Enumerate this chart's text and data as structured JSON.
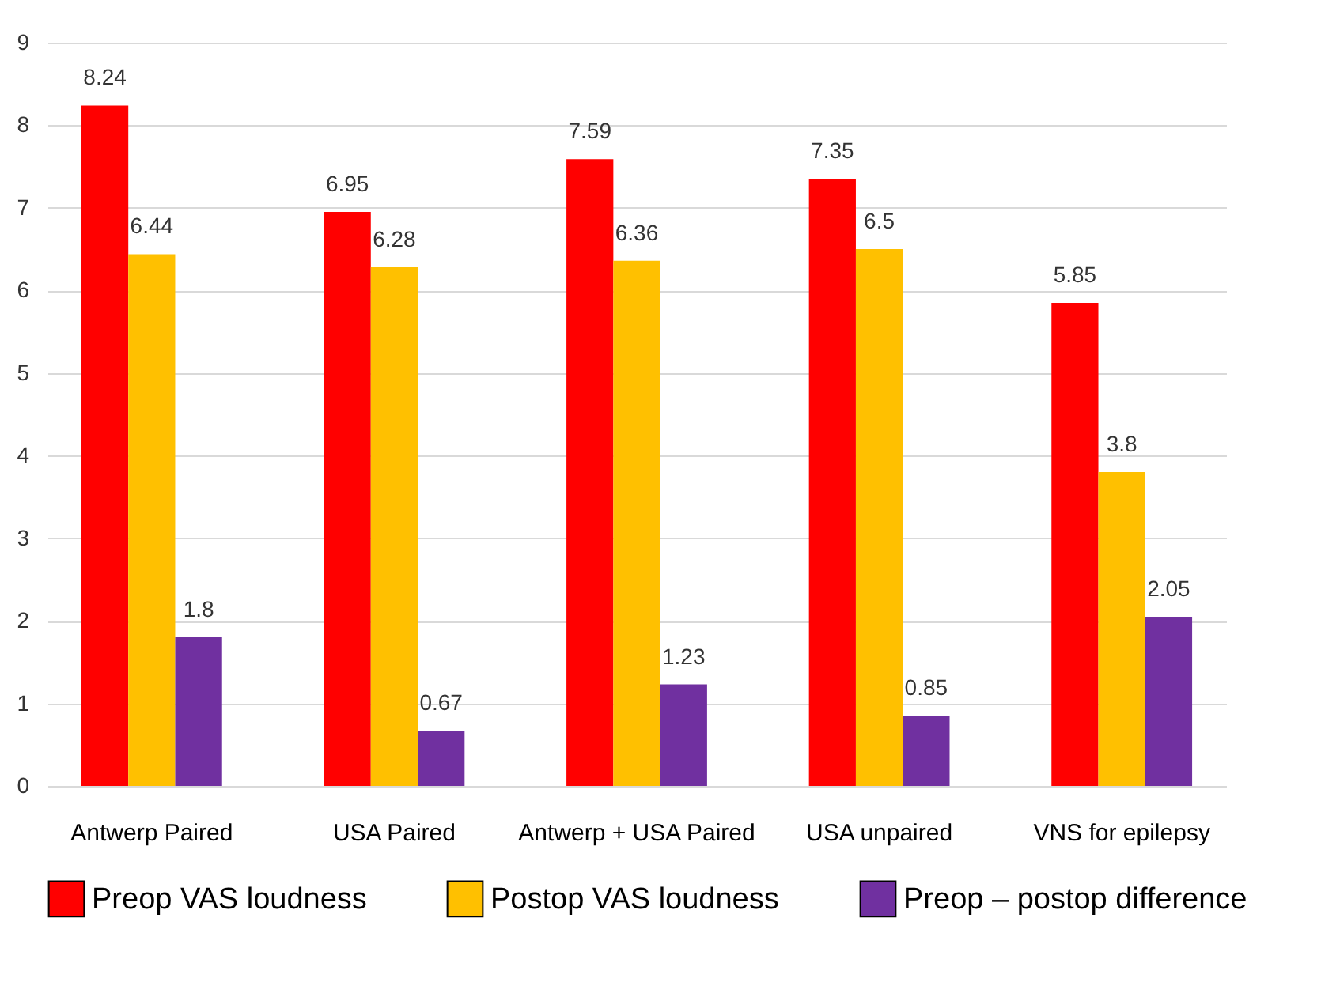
{
  "chart_data": {
    "type": "bar",
    "categories": [
      "Antwerp Paired",
      "USA Paired",
      "Antwerp + USA Paired",
      "USA unpaired",
      "VNS for epilepsy"
    ],
    "series": [
      {
        "name": "Preop VAS loudness",
        "color": "#ff0000",
        "values": [
          8.24,
          6.95,
          7.59,
          7.35,
          5.85
        ]
      },
      {
        "name": "Postop VAS loudness",
        "color": "#ffc000",
        "values": [
          6.44,
          6.28,
          6.36,
          6.5,
          3.8
        ]
      },
      {
        "name": "Preop – postop difference",
        "color": "#7030a0",
        "values": [
          1.8,
          0.67,
          1.23,
          0.85,
          2.05
        ]
      }
    ],
    "ylim": [
      0,
      9
    ],
    "yticks": [
      0,
      1,
      2,
      3,
      4,
      5,
      6,
      7,
      8,
      9
    ],
    "grid": "y",
    "legend": "bottom",
    "data_labels": true
  }
}
